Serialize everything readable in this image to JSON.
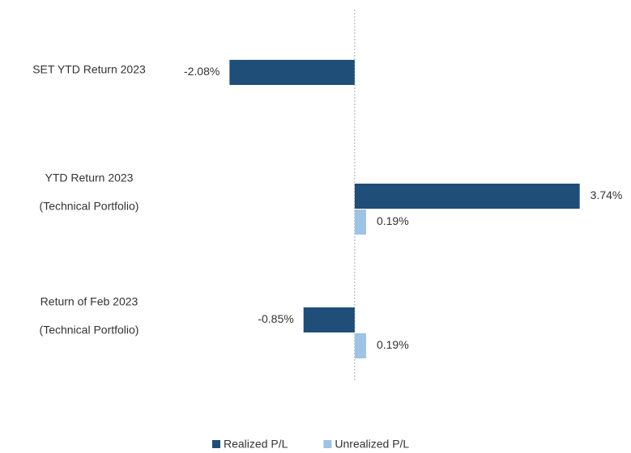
{
  "chart_data": {
    "type": "hbar",
    "categories": [
      [
        "SET YTD Return 2023"
      ],
      [
        "YTD Return 2023",
        "(Technical Portfolio)"
      ],
      [
        "Return of Feb 2023",
        "(Technical Portfolio)"
      ]
    ],
    "series": [
      {
        "name": "Realized P/L",
        "color": "#1f4e79",
        "values": [
          -2.08,
          3.74,
          -0.85
        ],
        "value_labels": [
          "-2.08%",
          "3.74%",
          "-0.85%"
        ]
      },
      {
        "name": "Unrealized P/L",
        "color": "#9dc3e6",
        "values": [
          null,
          0.19,
          0.19
        ],
        "value_labels": [
          null,
          "0.19%",
          "0.19%"
        ]
      }
    ],
    "xlim": [
      -3,
      4
    ],
    "legend": "bottom"
  }
}
